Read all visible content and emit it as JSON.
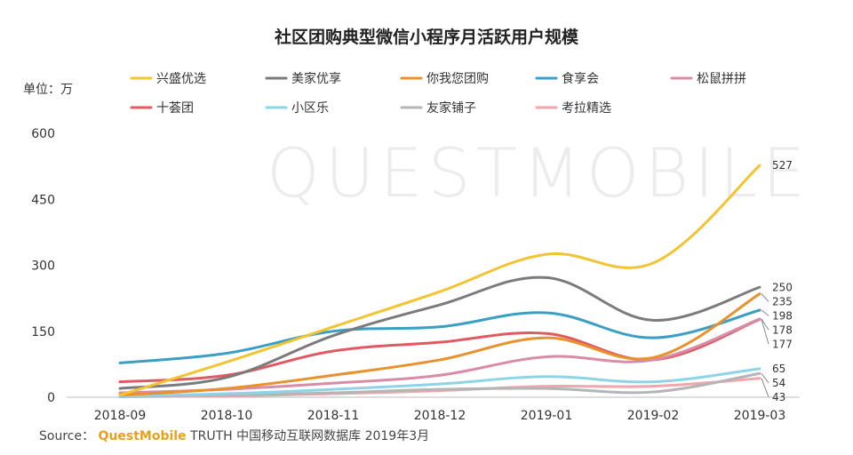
{
  "chart_data": {
    "type": "line",
    "title": "社区团购典型微信小程序月活跃用户规模",
    "unit": "单位：万",
    "watermark": "QUESTMOBILE",
    "categories": [
      "2018-09",
      "2018-10",
      "2018-11",
      "2018-12",
      "2019-01",
      "2019-02",
      "2019-03"
    ],
    "ylim": [
      0,
      600
    ],
    "yticks": [
      "0",
      "150",
      "300",
      "450",
      "600"
    ],
    "legend_position": "top",
    "series": [
      {
        "name": "兴盛优选",
        "color": "#f2c431",
        "values": [
          5,
          80,
          160,
          240,
          325,
          305,
          527
        ],
        "end_label": "527"
      },
      {
        "name": "美家优享",
        "color": "#7b7b7b",
        "values": [
          20,
          45,
          140,
          210,
          272,
          175,
          250
        ],
        "end_label": "250"
      },
      {
        "name": "你我您团购",
        "color": "#e8912d",
        "values": [
          5,
          20,
          50,
          85,
          135,
          90,
          235
        ],
        "end_label": "235"
      },
      {
        "name": "食享会",
        "color": "#3a9fc3",
        "values": [
          78,
          100,
          150,
          160,
          192,
          135,
          198
        ],
        "end_label": "198"
      },
      {
        "name": "松鼠拼拼",
        "color": "#d98ca8",
        "values": [
          10,
          18,
          32,
          50,
          92,
          85,
          178
        ],
        "end_label": "178"
      },
      {
        "name": "十荟团",
        "color": "#e05a63",
        "values": [
          35,
          50,
          105,
          125,
          145,
          85,
          177
        ],
        "end_label": "177"
      },
      {
        "name": "小区乐",
        "color": "#8fd3e8",
        "values": [
          3,
          8,
          18,
          30,
          47,
          35,
          65
        ],
        "end_label": "65"
      },
      {
        "name": "友家铺子",
        "color": "#b5b5b5",
        "values": [
          2,
          5,
          10,
          18,
          20,
          12,
          54
        ],
        "end_label": "54"
      },
      {
        "name": "考拉精选",
        "color": "#f0a6ad",
        "values": [
          1,
          3,
          8,
          15,
          25,
          25,
          43
        ],
        "end_label": "43"
      }
    ]
  },
  "footer": {
    "source_prefix": "Source：",
    "brand": "QuestMobile",
    "source_text": "TRUTH 中国移动互联网数据库 2019年3月"
  }
}
